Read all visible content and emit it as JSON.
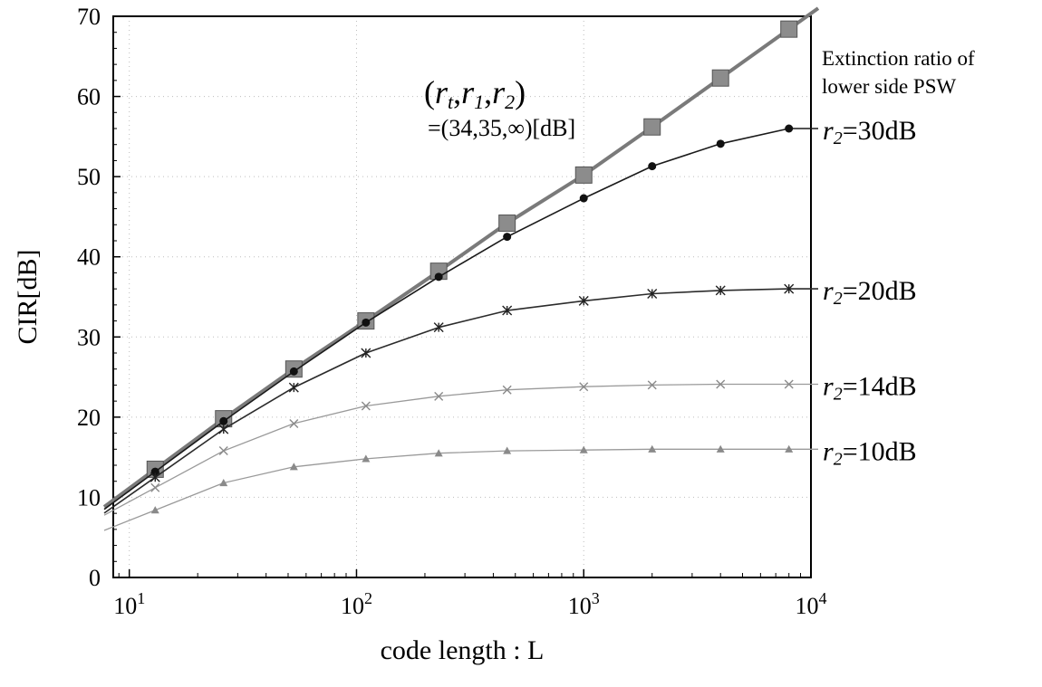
{
  "chart_data": {
    "type": "line",
    "xlabel": "code length : L",
    "ylabel": "CIR[dB]",
    "xscale": "log",
    "xlim": [
      8.5,
      10000
    ],
    "ylim": [
      0,
      70
    ],
    "x_ticks": [
      {
        "value": 10,
        "base": "10",
        "exp": "1"
      },
      {
        "value": 100,
        "base": "10",
        "exp": "2"
      },
      {
        "value": 1000,
        "base": "10",
        "exp": "3"
      },
      {
        "value": 10000,
        "base": "10",
        "exp": "4"
      }
    ],
    "y_ticks": [
      0,
      10,
      20,
      30,
      40,
      50,
      60,
      70
    ],
    "grid": "dotted",
    "legend_title": [
      "Extinction ratio of",
      "lower side PSW"
    ],
    "annotation": {
      "line1": {
        "open": "(",
        "r_t": "r",
        "t_sub": "t",
        "sep1": ",",
        "r_1": "r",
        "one_sub": "1",
        "sep2": ",",
        "r_2": "r",
        "two_sub": "2",
        "close": ")"
      },
      "line2": "=(34,35,∞)[dB]"
    },
    "series": [
      {
        "name": "(34,35,∞)",
        "color": "#7a7a7a",
        "marker": "square",
        "x": [
          13,
          26,
          53,
          110,
          230,
          460,
          1000,
          2000,
          4000,
          8000
        ],
        "y": [
          13.5,
          19.8,
          26.0,
          32.0,
          38.2,
          44.2,
          50.2,
          56.2,
          62.3,
          68.4
        ]
      },
      {
        "name": "r2=30dB",
        "label_r": "r",
        "label_sub": "2",
        "label_eq": "=30dB",
        "color": "#1a1a1a",
        "marker": "circle",
        "x": [
          13,
          26,
          53,
          110,
          230,
          460,
          1000,
          2000,
          4000,
          8000
        ],
        "y": [
          13.2,
          19.5,
          25.7,
          31.8,
          37.5,
          42.5,
          47.3,
          51.3,
          54.1,
          56.0
        ]
      },
      {
        "name": "r2=20dB",
        "label_r": "r",
        "label_sub": "2",
        "label_eq": "=20dB",
        "color": "#2b2b2b",
        "marker": "asterisk",
        "x": [
          13,
          26,
          53,
          110,
          230,
          460,
          1000,
          2000,
          4000,
          8000
        ],
        "y": [
          12.5,
          18.5,
          23.7,
          28.0,
          31.2,
          33.3,
          34.5,
          35.4,
          35.8,
          36.0
        ]
      },
      {
        "name": "r2=14dB",
        "label_r": "r",
        "label_sub": "2",
        "label_eq": "=14dB",
        "color": "#9a9a9a",
        "marker": "x",
        "x": [
          13,
          26,
          53,
          110,
          230,
          460,
          1000,
          2000,
          4000,
          8000
        ],
        "y": [
          11.2,
          15.8,
          19.2,
          21.4,
          22.6,
          23.4,
          23.8,
          24.0,
          24.1,
          24.1
        ]
      },
      {
        "name": "r2=10dB",
        "label_r": "r",
        "label_sub": "2",
        "label_eq": "=10dB",
        "color": "#9a9a9a",
        "marker": "triangle",
        "x": [
          13,
          26,
          53,
          110,
          230,
          460,
          1000,
          2000,
          4000,
          8000
        ],
        "y": [
          8.4,
          11.8,
          13.8,
          14.8,
          15.5,
          15.8,
          15.9,
          16.0,
          16.0,
          16.0
        ]
      }
    ]
  }
}
